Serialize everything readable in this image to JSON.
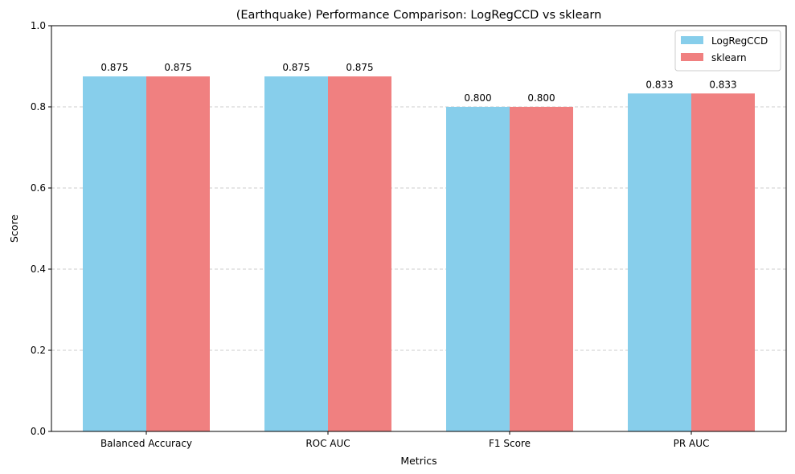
{
  "chart_data": {
    "type": "bar",
    "title": "(Earthquake) Performance Comparison: LogRegCCD vs sklearn",
    "xlabel": "Metrics",
    "ylabel": "Score",
    "categories": [
      "Balanced Accuracy",
      "ROC AUC",
      "F1 Score",
      "PR AUC"
    ],
    "series": [
      {
        "name": "LogRegCCD",
        "color": "#87CEEB",
        "values": [
          0.875,
          0.875,
          0.8,
          0.833
        ],
        "labels": [
          "0.875",
          "0.875",
          "0.800",
          "0.833"
        ]
      },
      {
        "name": "sklearn",
        "color": "#F08080",
        "values": [
          0.875,
          0.875,
          0.8,
          0.833
        ],
        "labels": [
          "0.875",
          "0.875",
          "0.800",
          "0.833"
        ]
      }
    ],
    "ylim": [
      0,
      1.0
    ],
    "yticks": [
      "0.0",
      "0.2",
      "0.4",
      "0.6",
      "0.8",
      "1.0"
    ],
    "grid": "y-dashed",
    "legend_position": "top-right"
  }
}
